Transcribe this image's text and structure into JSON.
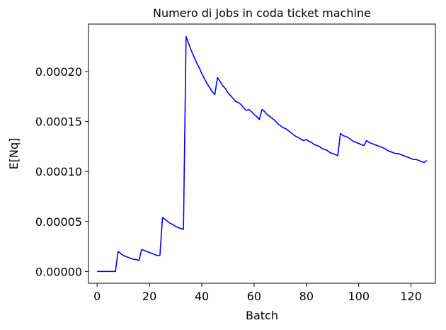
{
  "chart_data": {
    "type": "line",
    "title": "Numero di Jobs in coda ticket machine",
    "xlabel": "Batch",
    "ylabel": "E[Nq]",
    "xlim": [
      -3.3,
      129.3
    ],
    "ylim": [
      -1.18e-05,
      0.0002475
    ],
    "xticks": [
      0,
      20,
      40,
      60,
      80,
      100,
      120
    ],
    "xtick_labels": [
      "0",
      "20",
      "40",
      "60",
      "80",
      "100",
      "120"
    ],
    "yticks": [
      0.0,
      5e-05,
      0.0001,
      0.00015,
      0.0002
    ],
    "ytick_labels": [
      "0.00000",
      "0.00005",
      "0.00010",
      "0.00015",
      "0.00020"
    ],
    "grid": false,
    "series": [
      {
        "color": "#0000ff",
        "x": [
          0,
          1,
          2,
          3,
          4,
          5,
          6,
          7,
          8,
          9,
          10,
          11,
          12,
          13,
          14,
          15,
          16,
          17,
          18,
          19,
          20,
          21,
          22,
          23,
          24,
          25,
          26,
          27,
          28,
          29,
          30,
          31,
          32,
          33,
          34,
          35,
          36,
          37,
          38,
          39,
          40,
          41,
          42,
          43,
          44,
          45,
          46,
          47,
          48,
          49,
          50,
          51,
          52,
          53,
          54,
          55,
          56,
          57,
          58,
          59,
          60,
          61,
          62,
          63,
          64,
          65,
          66,
          67,
          68,
          69,
          70,
          71,
          72,
          73,
          74,
          75,
          76,
          77,
          78,
          79,
          80,
          81,
          82,
          83,
          84,
          85,
          86,
          87,
          88,
          89,
          90,
          91,
          92,
          93,
          94,
          95,
          96,
          97,
          98,
          99,
          100,
          101,
          102,
          103,
          104,
          105,
          106,
          107,
          108,
          109,
          110,
          111,
          112,
          113,
          114,
          115,
          116,
          117,
          118,
          119,
          120,
          121,
          122,
          123,
          124,
          125,
          126
        ],
        "y": [
          0.0,
          0.0,
          0.0,
          0.0,
          0.0,
          0.0,
          0.0,
          0.0,
          2e-05,
          1.8e-05,
          1.6e-05,
          1.5e-05,
          1.4e-05,
          1.3e-05,
          1.2e-05,
          1.2e-05,
          1.1e-05,
          2.2e-05,
          2.1e-05,
          2e-05,
          1.9e-05,
          1.8e-05,
          1.7e-05,
          1.6e-05,
          1.6e-05,
          5.4e-05,
          5.2e-05,
          5e-05,
          4.8e-05,
          4.7e-05,
          4.5e-05,
          4.4e-05,
          4.3e-05,
          4.2e-05,
          0.000235,
          0.000228,
          0.000221,
          0.000215,
          0.000209,
          0.000204,
          0.000198,
          0.000193,
          0.000188,
          0.000184,
          0.00018,
          0.000177,
          0.000194,
          0.00019,
          0.000186,
          0.000183,
          0.000179,
          0.000176,
          0.000173,
          0.00017,
          0.000169,
          0.000167,
          0.000164,
          0.000161,
          0.000162,
          0.00016,
          0.000157,
          0.000155,
          0.000152,
          0.000162,
          0.00016,
          0.000157,
          0.000155,
          0.000153,
          0.000151,
          0.000148,
          0.000146,
          0.000144,
          0.000143,
          0.000141,
          0.000139,
          0.000137,
          0.000135,
          0.000134,
          0.000132,
          0.000131,
          0.000132,
          0.00013,
          0.000129,
          0.000127,
          0.000126,
          0.000125,
          0.000123,
          0.000122,
          0.000121,
          0.000119,
          0.000118,
          0.000117,
          0.000116,
          0.000138,
          0.000136,
          0.000135,
          0.000134,
          0.000132,
          0.00013,
          0.000129,
          0.000128,
          0.000127,
          0.000126,
          0.000131,
          0.000129,
          0.000128,
          0.000127,
          0.000126,
          0.000125,
          0.000124,
          0.000123,
          0.000121,
          0.00012,
          0.000119,
          0.000118,
          0.000118,
          0.000117,
          0.000116,
          0.000115,
          0.000114,
          0.000113,
          0.000112,
          0.000112,
          0.000111,
          0.00011,
          0.000109,
          0.000111
        ]
      }
    ]
  }
}
